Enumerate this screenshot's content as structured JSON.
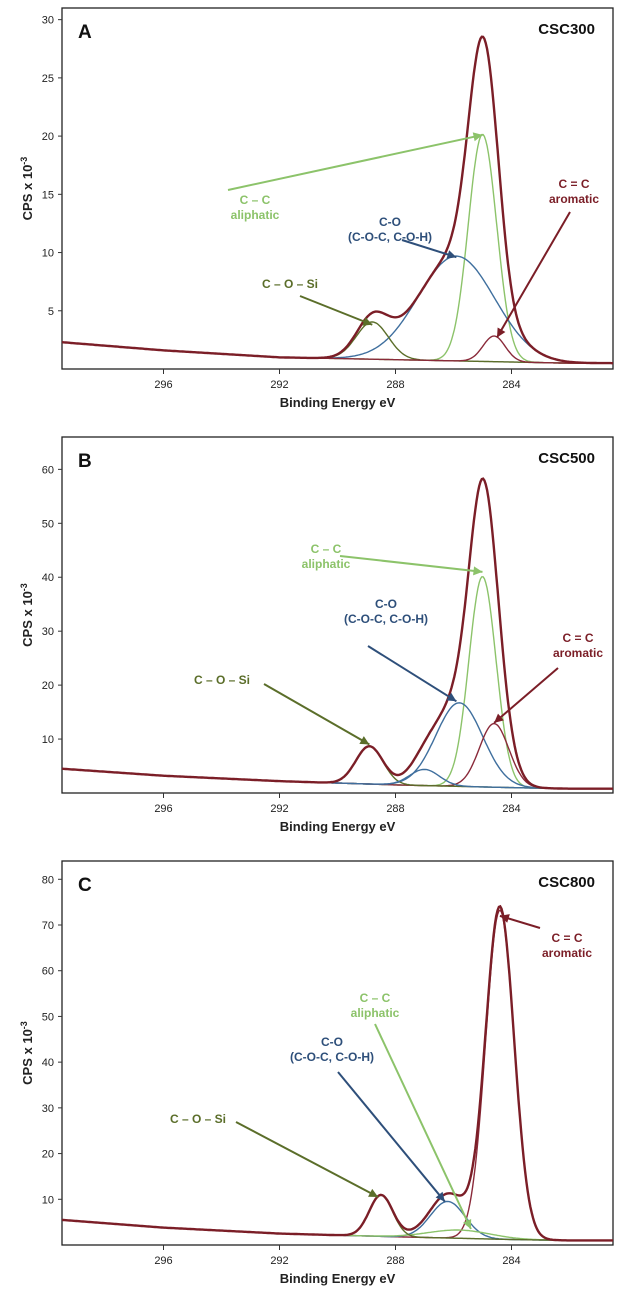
{
  "colors": {
    "envelope": "#7b1e27",
    "c_c_aliphatic": "#8cc36a",
    "c_o": "#3f6f9e",
    "c_o_si": "#5b6e2a",
    "c_eq_c_aromatic": "#8a2a3a",
    "background": "#444444",
    "ann_c_c": "#8cc36a",
    "ann_c_o": "#2e4f7a",
    "ann_c_o_si": "#5b6e2a",
    "ann_c_eq_c": "#7b1e27"
  },
  "chart_data": [
    {
      "type": "line",
      "panel": "A",
      "sample": "CSC300",
      "xlabel": "Binding Energy eV",
      "ylabel": "CPS x 10",
      "ylabel_sup": "-3",
      "x_reversed": true,
      "xlim": [
        299.5,
        280.5
      ],
      "ylim": [
        0,
        31
      ],
      "xticks": [
        296,
        292,
        288,
        284
      ],
      "yticks": [
        5,
        10,
        15,
        20,
        25,
        30
      ],
      "baseline": [
        [
          299.5,
          2.3
        ],
        [
          296,
          1.6
        ],
        [
          292,
          1.0
        ],
        [
          288,
          0.8
        ],
        [
          284,
          0.6
        ],
        [
          282,
          0.5
        ],
        [
          280.5,
          0.5
        ]
      ],
      "components": [
        {
          "name": "C – C aliphatic",
          "key": "c_c_aliphatic",
          "center": 285.0,
          "height": 19.5,
          "fwhm": 1.15
        },
        {
          "name": "C-O (C-O-C, C-O-H)",
          "key": "c_o",
          "center": 285.9,
          "height": 9.0,
          "fwhm": 3.1
        },
        {
          "name": "C – O – Si",
          "key": "c_o_si",
          "center": 288.8,
          "height": 3.2,
          "fwhm": 1.3
        },
        {
          "name": "C = C aromatic",
          "key": "c_eq_c_aromatic",
          "center": 284.6,
          "height": 2.2,
          "fwhm": 0.9
        }
      ],
      "annotations": [
        {
          "lines": [
            "C – C",
            "aliphatic"
          ],
          "key": "ann_c_c",
          "arrow_to": [
            285.0,
            20.1
          ]
        },
        {
          "lines": [
            "C-O",
            "(C-O-C, C-O-H)"
          ],
          "key": "ann_c_o",
          "arrow_to": [
            285.9,
            9.6
          ]
        },
        {
          "lines": [
            "C – O – Si"
          ],
          "key": "ann_c_o_si",
          "arrow_to": [
            288.8,
            3.8
          ]
        },
        {
          "lines": [
            "C = C",
            "aromatic"
          ],
          "key": "ann_c_eq_c",
          "arrow_to": [
            284.5,
            2.7
          ]
        }
      ]
    },
    {
      "type": "line",
      "panel": "B",
      "sample": "CSC500",
      "xlabel": "Binding Energy eV",
      "ylabel": "CPS x 10",
      "ylabel_sup": "-3",
      "x_reversed": true,
      "xlim": [
        299.5,
        280.5
      ],
      "ylim": [
        0,
        66
      ],
      "xticks": [
        296,
        292,
        288,
        284
      ],
      "yticks": [
        10,
        20,
        30,
        40,
        50,
        60
      ],
      "baseline": [
        [
          299.5,
          4.5
        ],
        [
          296,
          3.2
        ],
        [
          292,
          2.2
        ],
        [
          288,
          1.5
        ],
        [
          284,
          1.0
        ],
        [
          282,
          0.8
        ],
        [
          280.5,
          0.8
        ]
      ],
      "components": [
        {
          "name": "C – C aliphatic",
          "key": "c_c_aliphatic",
          "center": 285.0,
          "height": 39.0,
          "fwhm": 1.1
        },
        {
          "name": "C-O (C-O-C, C-O-H)",
          "key": "c_o",
          "center": 285.8,
          "height": 15.5,
          "fwhm": 1.9
        },
        {
          "name": "C = C aromatic",
          "key": "c_eq_c_aromatic",
          "center": 284.6,
          "height": 11.8,
          "fwhm": 1.2
        },
        {
          "name": "C – O – Si",
          "key": "c_o_si",
          "center": 288.9,
          "height": 7.0,
          "fwhm": 1.1
        },
        {
          "name": "",
          "key": "c_o_si_minor",
          "center": 287.0,
          "height": 3.0,
          "fwhm": 1.2
        }
      ],
      "annotations": [
        {
          "lines": [
            "C – C",
            "aliphatic"
          ],
          "key": "ann_c_c",
          "arrow_to": [
            285.0,
            41
          ]
        },
        {
          "lines": [
            "C-O",
            "(C-O-C, C-O-H)"
          ],
          "key": "ann_c_o",
          "arrow_to": [
            285.9,
            17
          ]
        },
        {
          "lines": [
            "C – O – Si"
          ],
          "key": "ann_c_o_si",
          "arrow_to": [
            288.9,
            9
          ]
        },
        {
          "lines": [
            "C = C",
            "aromatic"
          ],
          "key": "ann_c_eq_c",
          "arrow_to": [
            284.6,
            13
          ]
        }
      ]
    },
    {
      "type": "line",
      "panel": "C",
      "sample": "CSC800",
      "xlabel": "Binding Energy eV",
      "ylabel": "CPS x 10",
      "ylabel_sup": "-3",
      "x_reversed": true,
      "xlim": [
        299.5,
        280.5
      ],
      "ylim": [
        0,
        84
      ],
      "xticks": [
        296,
        292,
        288,
        284
      ],
      "yticks": [
        10,
        20,
        30,
        40,
        50,
        60,
        70,
        80
      ],
      "baseline": [
        [
          299.5,
          5.5
        ],
        [
          296,
          3.8
        ],
        [
          292,
          2.5
        ],
        [
          288,
          1.8
        ],
        [
          284,
          1.2
        ],
        [
          282,
          1.0
        ],
        [
          280.5,
          1.0
        ]
      ],
      "components": [
        {
          "name": "C = C aromatic",
          "key": "c_eq_c_aromatic",
          "center": 284.4,
          "height": 72.0,
          "fwhm": 1.15
        },
        {
          "name": "C-O (C-O-C, C-O-H)",
          "key": "c_o",
          "center": 286.2,
          "height": 8.0,
          "fwhm": 1.4
        },
        {
          "name": "C – C aliphatic",
          "key": "c_c_aliphatic",
          "center": 285.8,
          "height": 1.8,
          "fwhm": 2.5
        },
        {
          "name": "C – O – Si",
          "key": "c_o_si",
          "center": 288.5,
          "height": 9.0,
          "fwhm": 0.95
        }
      ],
      "annotations": [
        {
          "lines": [
            "C = C",
            "aromatic"
          ],
          "key": "ann_c_eq_c",
          "arrow_to": [
            284.4,
            72
          ]
        },
        {
          "lines": [
            "C – C",
            "aliphatic"
          ],
          "key": "ann_c_c",
          "arrow_to": [
            285.4,
            3.5
          ]
        },
        {
          "lines": [
            "C-O",
            "(C-O-C, C-O-H)"
          ],
          "key": "ann_c_o",
          "arrow_to": [
            286.3,
            9.5
          ]
        },
        {
          "lines": [
            "C – O – Si"
          ],
          "key": "ann_c_o_si",
          "arrow_to": [
            288.6,
            10.5
          ]
        }
      ]
    }
  ]
}
